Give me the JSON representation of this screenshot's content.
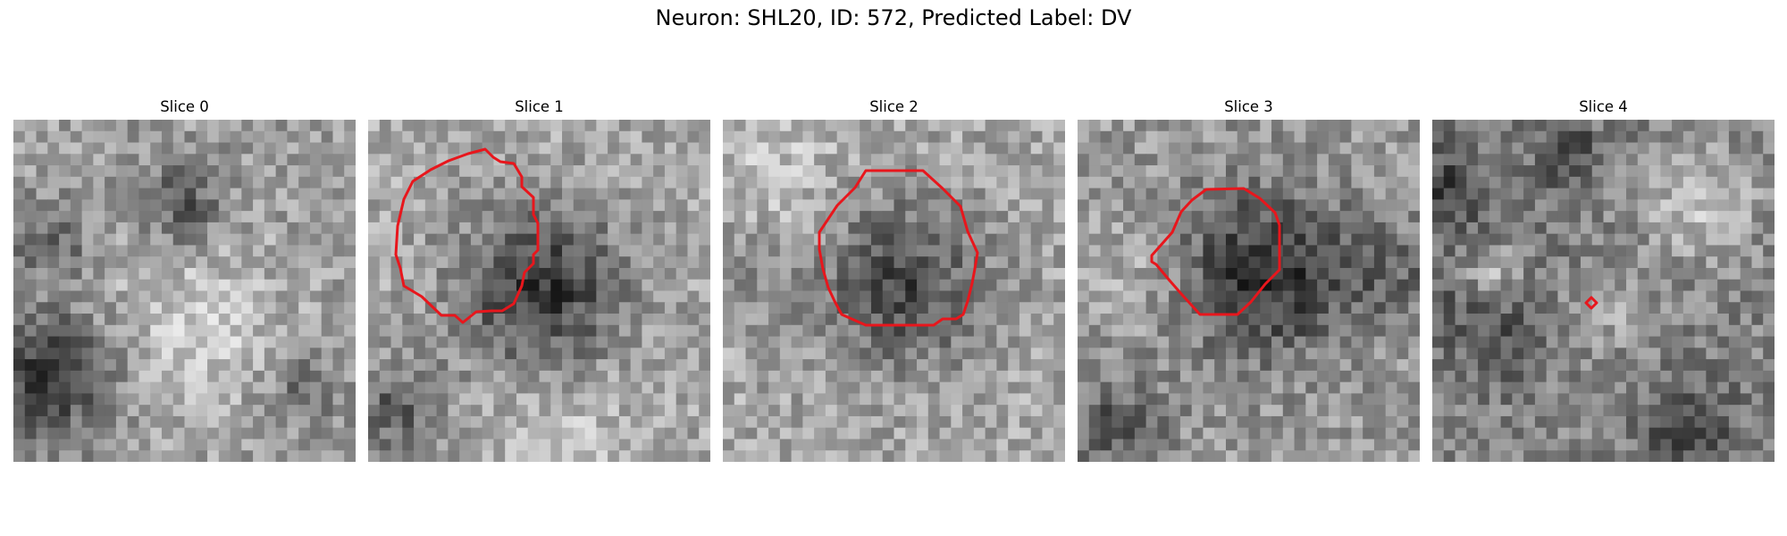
{
  "figure": {
    "title": "Neuron: SHL20, ID: 572, Predicted Label: DV"
  },
  "colors": {
    "contour": "#e8161c",
    "background": "#ffffff"
  },
  "slices": [
    {
      "title": "Slice 0",
      "has_contour": false
    },
    {
      "title": "Slice 1",
      "has_contour": true
    },
    {
      "title": "Slice 2",
      "has_contour": true
    },
    {
      "title": "Slice 3",
      "has_contour": true
    },
    {
      "title": "Slice 4",
      "has_contour": true
    }
  ]
}
